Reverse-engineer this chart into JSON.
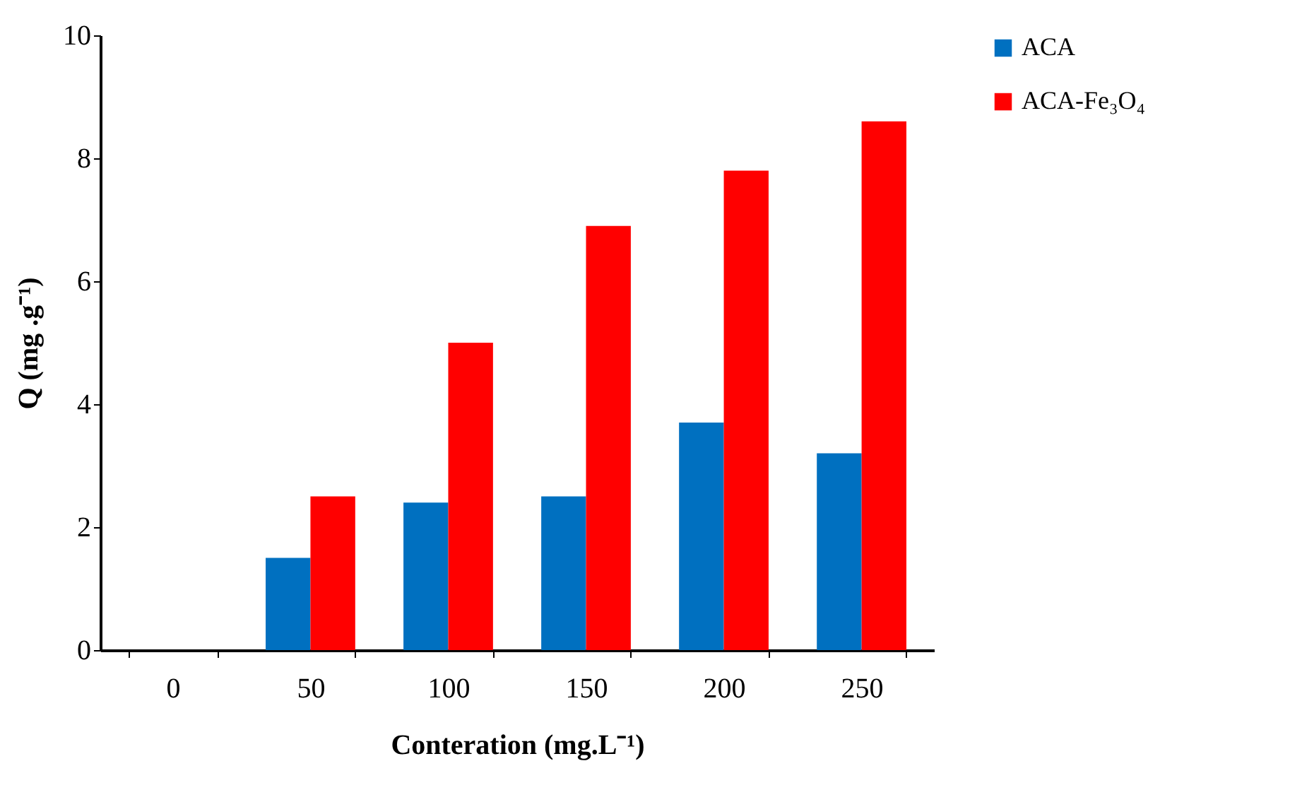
{
  "chart_data": {
    "type": "bar",
    "xlabel": "Conteration (mg.L⁻¹)",
    "ylabel": "Q (mg .g⁻¹)",
    "categories": [
      "0",
      "50",
      "100",
      "150",
      "200",
      "250"
    ],
    "series": [
      {
        "name": "ACA",
        "color": "#0070c0",
        "values": [
          0,
          1.5,
          2.4,
          2.5,
          3.7,
          3.2
        ]
      },
      {
        "name": "ACA-Fe₃O₄",
        "color": "#ff0000",
        "values": [
          0,
          2.5,
          5.0,
          6.9,
          7.8,
          8.6
        ]
      }
    ],
    "ylim": [
      0,
      10
    ],
    "yticks": [
      0,
      2,
      4,
      6,
      8,
      10
    ],
    "legend": "right",
    "grid": false
  }
}
